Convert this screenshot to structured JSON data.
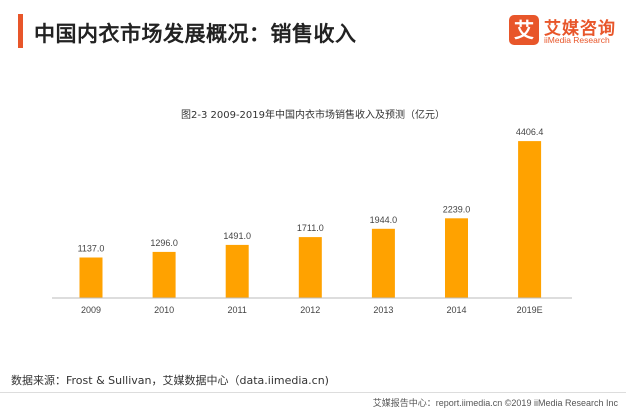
{
  "header": {
    "title": "中国内衣市场发展概况：销售收入"
  },
  "logo": {
    "mark": "艾",
    "name": "艾媒咨询",
    "sub": "iiMedia Research"
  },
  "chart_data": {
    "type": "bar",
    "title": "图2-3 2009-2019年中国内衣市场销售收入及预测（亿元）",
    "categories": [
      "2009",
      "2010",
      "2011",
      "2012",
      "2013",
      "2014",
      "2019E"
    ],
    "values": [
      1137.0,
      1296.0,
      1491.0,
      1711.0,
      1944.0,
      2239.0,
      4406.4
    ],
    "value_labels": [
      "1137.0",
      "1296.0",
      "1491.0",
      "1711.0",
      "1944.0",
      "2239.0",
      "4406.4"
    ],
    "xlabel": "",
    "ylabel": "",
    "ylim": [
      0,
      5000
    ],
    "grid": false,
    "bar_color": "#ffa200"
  },
  "source": {
    "text": "数据来源：Frost & Sullivan，艾媒数据中心（data.iimedia.cn)"
  },
  "footer": {
    "text": "艾媒报告中心：report.iimedia.cn ©2019 iiMedia Research Inc"
  }
}
